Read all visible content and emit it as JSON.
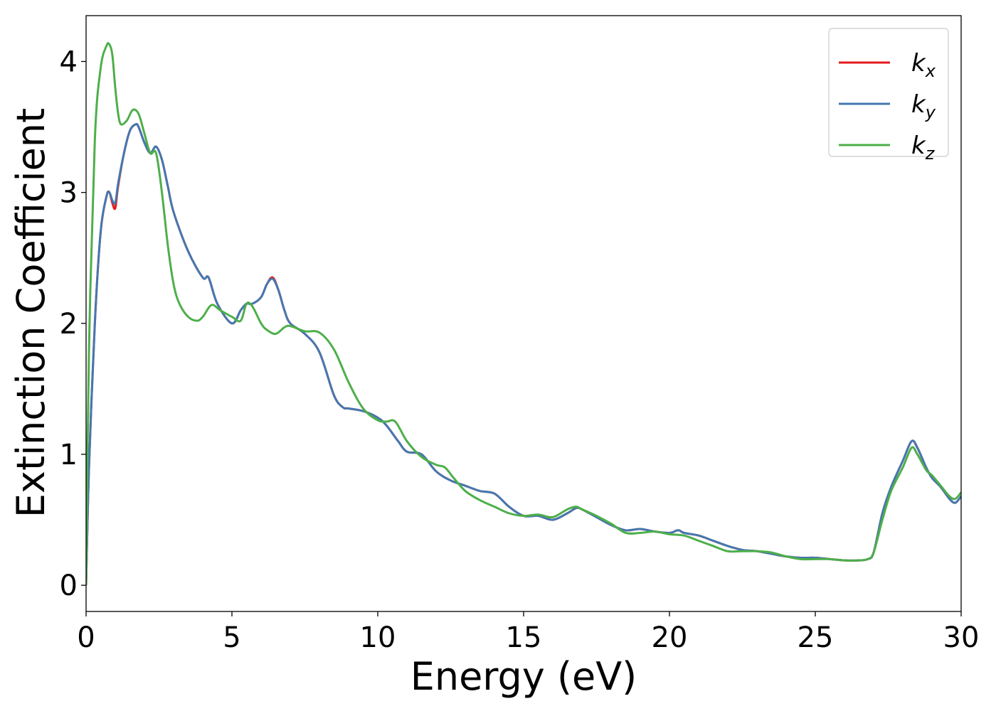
{
  "chart_data": {
    "type": "line",
    "title": "",
    "xlabel": "Energy (eV)",
    "ylabel": "Extinction Coefficient",
    "xlim": [
      0,
      30
    ],
    "ylim": [
      -0.2,
      4.35
    ],
    "xticks": [
      0,
      5,
      10,
      15,
      20,
      25,
      30
    ],
    "yticks": [
      0,
      1,
      2,
      3,
      4
    ],
    "grid": false,
    "legend_position": "top-right",
    "series": [
      {
        "name": "k_x",
        "label_main": "k",
        "label_sub": "x",
        "color": "#e41a1c",
        "x": [
          0,
          0.1,
          0.3,
          0.5,
          0.7,
          0.8,
          0.9,
          1.0,
          1.1,
          1.3,
          1.5,
          1.7,
          1.8,
          2.0,
          2.2,
          2.4,
          2.6,
          2.8,
          3.0,
          3.5,
          4.0,
          4.2,
          4.5,
          5.0,
          5.3,
          5.5,
          5.7,
          6.0,
          6.2,
          6.4,
          6.6,
          6.8,
          7.0,
          7.5,
          8.0,
          8.5,
          8.8,
          9.0,
          9.5,
          10.0,
          10.3,
          10.7,
          11.0,
          11.5,
          12.0,
          12.5,
          13.0,
          13.5,
          14.0,
          14.5,
          15.0,
          15.5,
          16.0,
          16.5,
          16.8,
          17.0,
          17.5,
          18.0,
          18.5,
          19.0,
          19.5,
          20.0,
          20.3,
          20.5,
          21.0,
          21.5,
          22.0,
          22.5,
          23.0,
          23.5,
          24.0,
          24.5,
          25.0,
          25.5,
          26.0,
          26.5,
          26.8,
          27.0,
          27.3,
          27.6,
          28.0,
          28.3,
          28.5,
          28.8,
          29.0,
          29.3,
          29.6,
          29.8,
          30.0
        ],
        "y": [
          0,
          0.9,
          2.0,
          2.7,
          2.97,
          3.0,
          2.92,
          2.88,
          3.05,
          3.3,
          3.47,
          3.52,
          3.5,
          3.38,
          3.3,
          3.35,
          3.25,
          3.05,
          2.85,
          2.55,
          2.35,
          2.35,
          2.15,
          2.0,
          2.1,
          2.15,
          2.15,
          2.2,
          2.3,
          2.35,
          2.25,
          2.1,
          2.0,
          1.92,
          1.78,
          1.45,
          1.36,
          1.35,
          1.33,
          1.28,
          1.22,
          1.1,
          1.02,
          1.0,
          0.87,
          0.8,
          0.76,
          0.72,
          0.7,
          0.6,
          0.53,
          0.53,
          0.5,
          0.55,
          0.59,
          0.58,
          0.52,
          0.46,
          0.42,
          0.43,
          0.41,
          0.4,
          0.42,
          0.4,
          0.38,
          0.34,
          0.3,
          0.27,
          0.26,
          0.24,
          0.22,
          0.21,
          0.21,
          0.2,
          0.19,
          0.19,
          0.2,
          0.25,
          0.55,
          0.75,
          0.95,
          1.1,
          1.05,
          0.9,
          0.82,
          0.75,
          0.66,
          0.63,
          0.68
        ]
      },
      {
        "name": "k_y",
        "label_main": "k",
        "label_sub": "y",
        "color": "#4478b0",
        "x": [
          0,
          0.1,
          0.3,
          0.5,
          0.7,
          0.8,
          0.9,
          1.0,
          1.1,
          1.3,
          1.5,
          1.7,
          1.8,
          2.0,
          2.2,
          2.4,
          2.6,
          2.8,
          3.0,
          3.5,
          4.0,
          4.2,
          4.5,
          5.0,
          5.3,
          5.5,
          5.7,
          6.0,
          6.2,
          6.4,
          6.6,
          6.8,
          7.0,
          7.5,
          8.0,
          8.5,
          8.8,
          9.0,
          9.5,
          10.0,
          10.3,
          10.7,
          11.0,
          11.5,
          12.0,
          12.5,
          13.0,
          13.5,
          14.0,
          14.5,
          15.0,
          15.5,
          16.0,
          16.5,
          16.8,
          17.0,
          17.5,
          18.0,
          18.5,
          19.0,
          19.5,
          20.0,
          20.3,
          20.5,
          21.0,
          21.5,
          22.0,
          22.5,
          23.0,
          23.5,
          24.0,
          24.5,
          25.0,
          25.5,
          26.0,
          26.5,
          26.8,
          27.0,
          27.3,
          27.6,
          28.0,
          28.3,
          28.5,
          28.8,
          29.0,
          29.3,
          29.6,
          29.8,
          30.0
        ],
        "y": [
          0,
          0.9,
          2.0,
          2.7,
          2.97,
          3.0,
          2.94,
          2.92,
          3.07,
          3.3,
          3.47,
          3.52,
          3.5,
          3.38,
          3.3,
          3.35,
          3.25,
          3.05,
          2.85,
          2.55,
          2.35,
          2.35,
          2.15,
          2.0,
          2.1,
          2.15,
          2.15,
          2.2,
          2.3,
          2.34,
          2.25,
          2.1,
          2.0,
          1.92,
          1.78,
          1.45,
          1.36,
          1.35,
          1.33,
          1.28,
          1.22,
          1.1,
          1.02,
          1.0,
          0.87,
          0.8,
          0.76,
          0.72,
          0.7,
          0.6,
          0.53,
          0.53,
          0.5,
          0.55,
          0.59,
          0.58,
          0.52,
          0.46,
          0.42,
          0.43,
          0.41,
          0.4,
          0.42,
          0.4,
          0.38,
          0.34,
          0.3,
          0.27,
          0.26,
          0.24,
          0.22,
          0.21,
          0.21,
          0.2,
          0.19,
          0.19,
          0.2,
          0.25,
          0.55,
          0.75,
          0.95,
          1.1,
          1.05,
          0.9,
          0.82,
          0.75,
          0.66,
          0.63,
          0.68
        ]
      },
      {
        "name": "k_z",
        "label_main": "k",
        "label_sub": "z",
        "color": "#4daf4a",
        "x": [
          0,
          0.1,
          0.3,
          0.5,
          0.7,
          0.8,
          0.9,
          1.0,
          1.1,
          1.2,
          1.4,
          1.6,
          1.8,
          2.0,
          2.2,
          2.4,
          2.6,
          2.8,
          3.0,
          3.2,
          3.5,
          3.8,
          4.0,
          4.3,
          4.6,
          5.0,
          5.3,
          5.5,
          5.7,
          6.0,
          6.2,
          6.5,
          6.8,
          7.0,
          7.5,
          8.0,
          8.5,
          9.0,
          9.5,
          10.0,
          10.3,
          10.6,
          11.0,
          11.5,
          12.0,
          12.3,
          12.6,
          13.0,
          13.5,
          14.0,
          14.5,
          15.0,
          15.5,
          16.0,
          16.5,
          16.8,
          17.0,
          17.5,
          18.0,
          18.5,
          19.0,
          19.5,
          20.0,
          20.5,
          21.0,
          21.5,
          22.0,
          22.5,
          23.0,
          23.5,
          24.0,
          24.5,
          25.0,
          25.5,
          26.0,
          26.5,
          26.8,
          27.0,
          27.3,
          27.6,
          28.0,
          28.3,
          28.5,
          28.8,
          29.0,
          29.3,
          29.6,
          29.8,
          30.0
        ],
        "y": [
          0,
          1.8,
          3.4,
          3.95,
          4.12,
          4.13,
          4.05,
          3.8,
          3.6,
          3.52,
          3.55,
          3.63,
          3.6,
          3.45,
          3.3,
          3.3,
          3.0,
          2.6,
          2.3,
          2.15,
          2.05,
          2.02,
          2.05,
          2.14,
          2.1,
          2.05,
          2.02,
          2.15,
          2.13,
          2.0,
          1.95,
          1.92,
          1.97,
          1.98,
          1.94,
          1.93,
          1.8,
          1.55,
          1.35,
          1.26,
          1.25,
          1.25,
          1.1,
          0.98,
          0.92,
          0.9,
          0.82,
          0.72,
          0.65,
          0.6,
          0.55,
          0.53,
          0.54,
          0.52,
          0.58,
          0.6,
          0.58,
          0.53,
          0.47,
          0.4,
          0.4,
          0.41,
          0.39,
          0.38,
          0.34,
          0.3,
          0.26,
          0.26,
          0.26,
          0.25,
          0.22,
          0.2,
          0.2,
          0.2,
          0.19,
          0.19,
          0.2,
          0.25,
          0.5,
          0.72,
          0.9,
          1.05,
          1.0,
          0.88,
          0.84,
          0.76,
          0.68,
          0.66,
          0.71
        ]
      }
    ]
  }
}
